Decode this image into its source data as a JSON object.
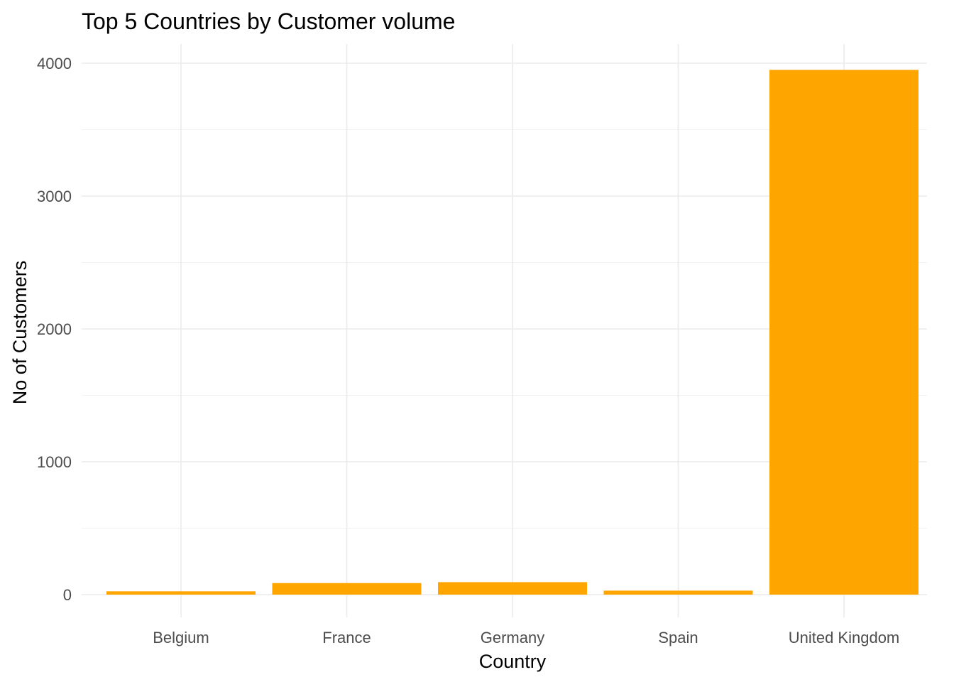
{
  "chart_data": {
    "type": "bar",
    "title": "Top 5 Countries by Customer volume",
    "xlabel": "Country",
    "ylabel": "No of Customers",
    "categories": [
      "Belgium",
      "France",
      "Germany",
      "Spain",
      "United Kingdom"
    ],
    "values": [
      25,
      87,
      94,
      30,
      3950
    ],
    "ylim": [
      0,
      4000
    ],
    "yticks": [
      0,
      1000,
      2000,
      3000,
      4000
    ],
    "ytick_labels": [
      "0",
      "1000",
      "2000",
      "3000",
      "4000"
    ],
    "bar_color": "#FFA500",
    "grid": true,
    "legend": "none"
  }
}
